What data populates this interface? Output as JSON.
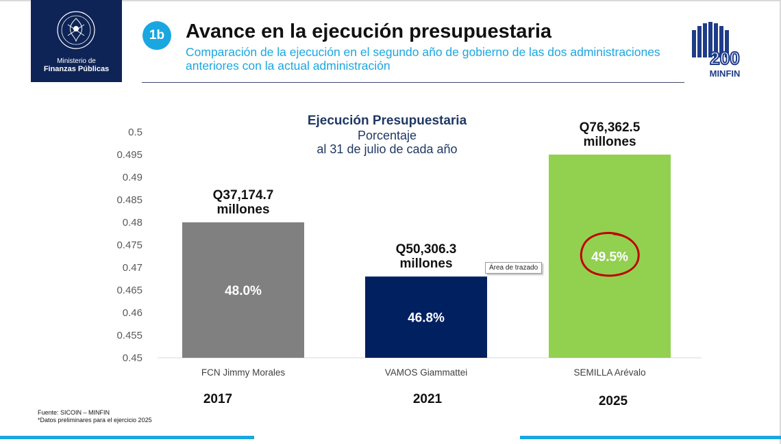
{
  "header": {
    "logo_line1": "Ministerio de",
    "logo_line2": "Finanzas Públicas",
    "badge": "1b",
    "title": "Avance en la ejecución presupuestaria",
    "subtitle": "Comparación de la ejecución en el segundo año de gobierno de las dos administraciones anteriores con la actual administración",
    "corner_logo_number": "200",
    "corner_logo_text": "MINFIN"
  },
  "colors": {
    "accent": "#1aa7e0",
    "navy": "#0f2456",
    "bar_2017": "#808080",
    "bar_2021": "#002060",
    "bar_2025": "#92d050",
    "highlight_circle": "#c00000"
  },
  "chart_data": {
    "type": "bar",
    "title": "Ejecución Presupuestaria",
    "subtitle_lines": [
      "Porcentaje",
      "al 31 de julio de cada año"
    ],
    "categories": [
      "FCN Jimmy Morales",
      "VAMOS Giammattei",
      "SEMILLA Arévalo"
    ],
    "years": [
      "2017",
      "2021",
      "2025"
    ],
    "values": [
      0.48,
      0.468,
      0.495
    ],
    "data_labels": [
      "48.0%",
      "46.8%",
      "49.5%"
    ],
    "amount_labels": [
      [
        "Q37,174.7",
        "millones"
      ],
      [
        "Q50,306.3",
        "millones"
      ],
      [
        "Q76,362.5",
        "millones"
      ]
    ],
    "ylim": [
      0.45,
      0.5
    ],
    "yticks": [
      "0.5",
      "0.495",
      "0.49",
      "0.485",
      "0.48",
      "0.475",
      "0.47",
      "0.465",
      "0.46",
      "0.455",
      "0.45"
    ],
    "highlighted_index": 2,
    "grid": false,
    "legend": "none"
  },
  "tooltip": "Área de trazado",
  "source": {
    "line1": "Fuente: SICOIN – MINFIN",
    "line2": "*Datos preliminares para el ejercicio 2025"
  }
}
